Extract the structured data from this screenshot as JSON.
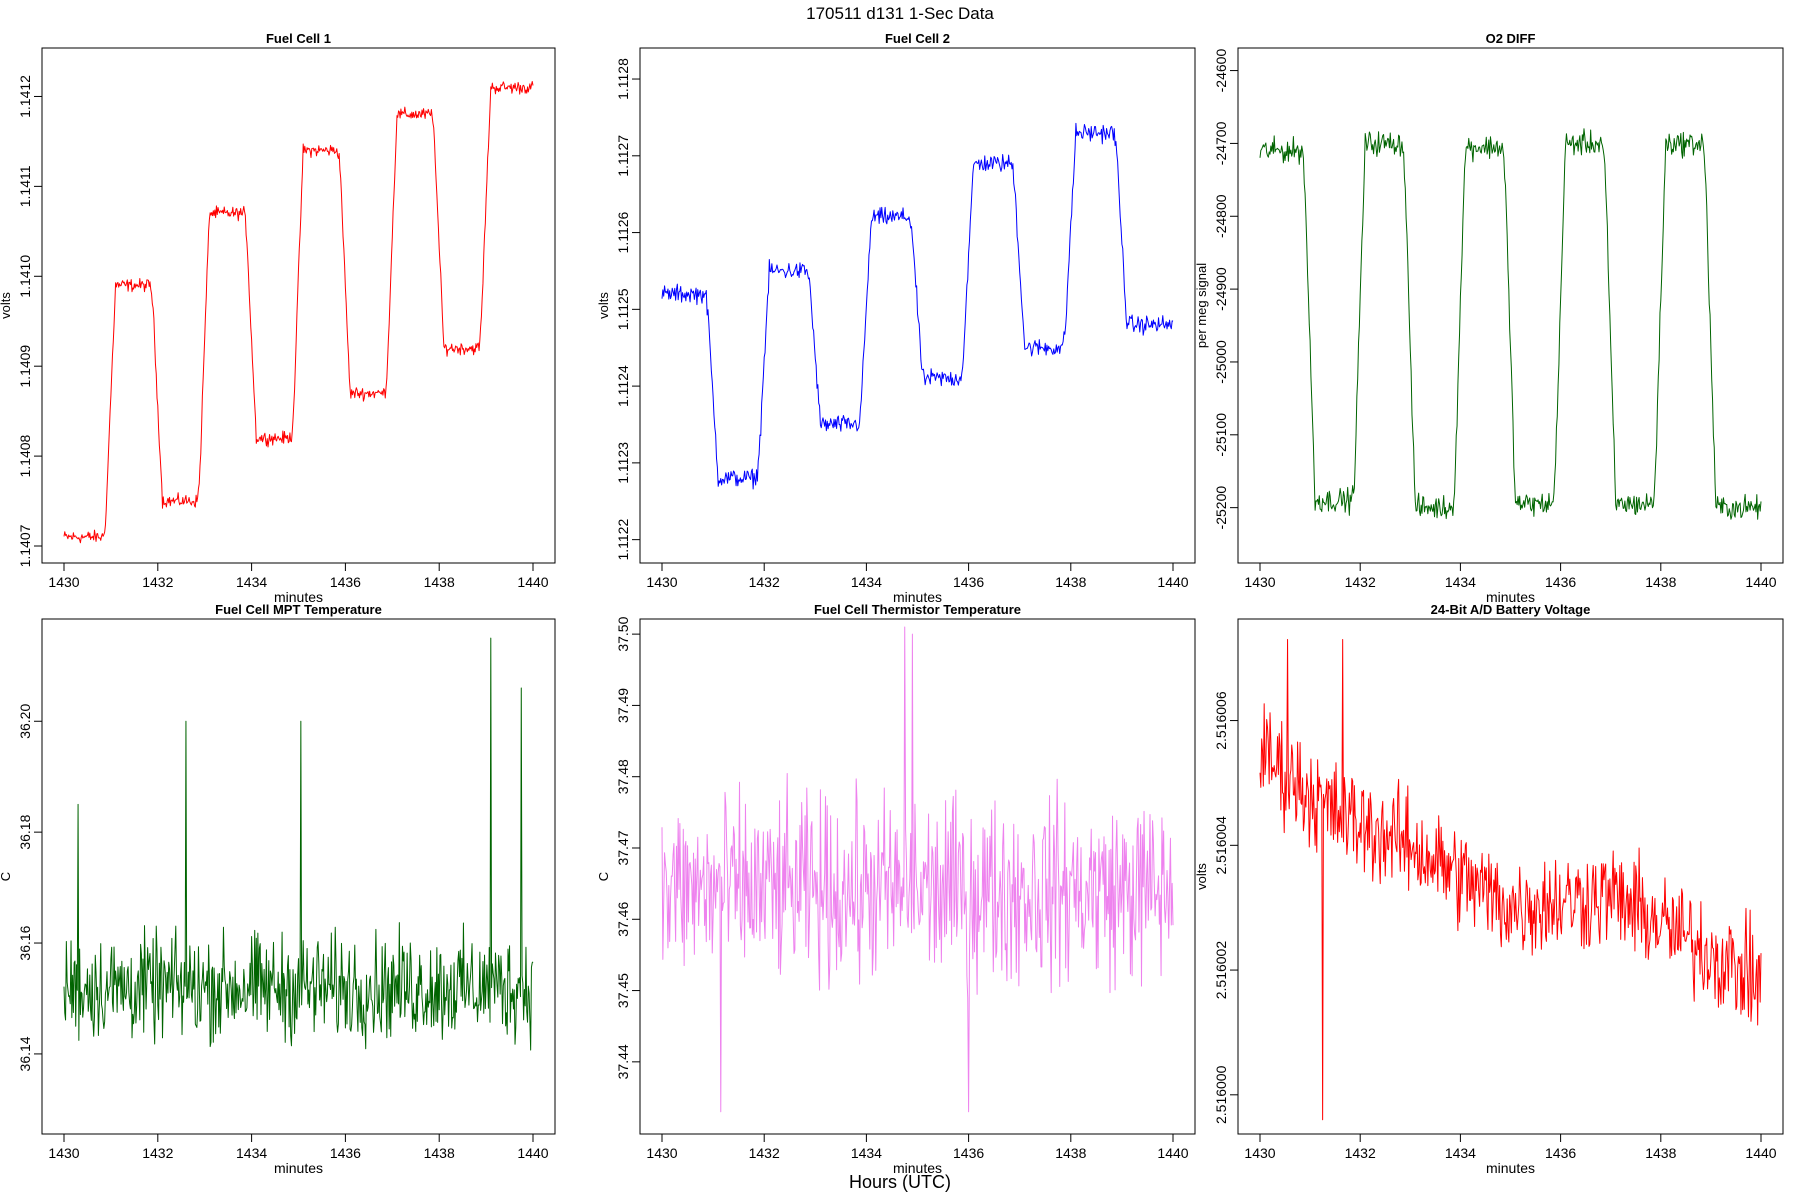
{
  "figure": {
    "title": "170511   d131   1-Sec Data",
    "xlabel": "Hours (UTC)"
  },
  "chart_data": [
    {
      "type": "line",
      "title": "Fuel Cell 1",
      "xlabel": "minutes",
      "ylabel": "volts",
      "color": "#ff0000",
      "xlim": [
        1430,
        1440
      ],
      "xticks": [
        1430,
        1432,
        1434,
        1436,
        1438,
        1440
      ],
      "ylim": [
        1.14069,
        1.141245
      ],
      "yticks": [
        "1.1407",
        "1.1408",
        "1.1409",
        "1.1410",
        "1.1411",
        "1.1412"
      ],
      "pattern": "square",
      "breakpoints": [
        1430,
        1430.95,
        1431.95,
        1432.95,
        1433.95,
        1434.95,
        1435.95,
        1436.95,
        1437.95,
        1438.95,
        1440
      ],
      "levels": [
        1.14071,
        1.14099,
        1.14075,
        1.14107,
        1.14082,
        1.14114,
        1.14087,
        1.14118,
        1.14092,
        1.14121
      ],
      "noise": 6e-06
    },
    {
      "type": "line",
      "title": "Fuel Cell 2",
      "xlabel": "minutes",
      "ylabel": "volts",
      "color": "#0000ff",
      "xlim": [
        1430,
        1440
      ],
      "xticks": [
        1430,
        1432,
        1434,
        1436,
        1438,
        1440
      ],
      "ylim": [
        1.11218,
        1.11283
      ],
      "yticks": [
        "1.1122",
        "1.1123",
        "1.1124",
        "1.1125",
        "1.1126",
        "1.1127",
        "1.1128"
      ],
      "pattern": "square",
      "breakpoints": [
        1430,
        1430.95,
        1431.95,
        1432.95,
        1433.95,
        1434.95,
        1435.95,
        1436.95,
        1437.95,
        1438.95,
        1440
      ],
      "levels": [
        1.11252,
        1.11228,
        1.11255,
        1.11235,
        1.11262,
        1.11241,
        1.11269,
        1.11245,
        1.11273,
        1.11248
      ],
      "noise": 1e-05
    },
    {
      "type": "line",
      "title": "O2 DIFF",
      "xlabel": "minutes",
      "ylabel": "per meg signal",
      "color": "#006400",
      "xlim": [
        1430,
        1440
      ],
      "xticks": [
        1430,
        1432,
        1434,
        1436,
        1438,
        1440
      ],
      "ylim": [
        -25265,
        -24580
      ],
      "yticks": [
        "-24600",
        "-24700",
        "-24800",
        "-24900",
        "-25000",
        "-25100",
        "-25200"
      ],
      "pattern": "square",
      "breakpoints": [
        1430,
        1430.95,
        1431.95,
        1432.95,
        1433.95,
        1434.95,
        1435.95,
        1436.95,
        1437.95,
        1438.95,
        1440
      ],
      "levels": [
        -24710,
        -25190,
        -24700,
        -25200,
        -24705,
        -25195,
        -24700,
        -25195,
        -24700,
        -25200
      ],
      "noise": 14
    },
    {
      "type": "line",
      "title": "Fuel Cell MPT Temperature",
      "xlabel": "minutes",
      "ylabel": "C",
      "color": "#006400",
      "xlim": [
        1430,
        1440
      ],
      "xticks": [
        1430,
        1432,
        1434,
        1436,
        1438,
        1440
      ],
      "ylim": [
        36.127,
        36.217
      ],
      "yticks": [
        "36.14",
        "36.16",
        "36.18",
        "36.20"
      ],
      "pattern": "noise",
      "base": 36.152,
      "noise": 0.008,
      "spikes": [
        [
          1430.3,
          36.185
        ],
        [
          1432.6,
          36.2
        ],
        [
          1435.05,
          36.2
        ],
        [
          1439.1,
          36.215
        ],
        [
          1439.75,
          36.206
        ]
      ]
    },
    {
      "type": "line",
      "title": "Fuel Cell Thermistor Temperature",
      "xlabel": "minutes",
      "ylabel": "C",
      "color": "#ee82ee",
      "xlim": [
        1430,
        1440
      ],
      "xticks": [
        1430,
        1432,
        1434,
        1436,
        1438,
        1440
      ],
      "ylim": [
        37.431,
        37.501
      ],
      "yticks": [
        "37.44",
        "37.45",
        "37.46",
        "37.47",
        "37.48",
        "37.49",
        "37.50"
      ],
      "pattern": "noise",
      "base": 37.464,
      "noise": 0.011,
      "spikes": [
        [
          1434.75,
          37.501
        ],
        [
          1434.9,
          37.5
        ],
        [
          1431.15,
          37.433
        ],
        [
          1436.0,
          37.433
        ]
      ]
    },
    {
      "type": "line",
      "title": "24-Bit A/D Battery Voltage",
      "xlabel": "minutes",
      "ylabel": "volts",
      "color": "#ff0000",
      "xlim": [
        1430,
        1440
      ],
      "xticks": [
        1430,
        1432,
        1434,
        1436,
        1438,
        1440
      ],
      "ylim": [
        2.5159995,
        2.5160075
      ],
      "yticks": [
        "2.516000",
        "2.516002",
        "2.516004",
        "2.516006"
      ],
      "pattern": "trend",
      "trend": [
        [
          1430,
          2.5160055
        ],
        [
          1431.5,
          2.5160045
        ],
        [
          1433,
          2.516004
        ],
        [
          1435,
          2.516003
        ],
        [
          1437,
          2.5160032
        ],
        [
          1438.5,
          2.5160025
        ],
        [
          1440,
          2.5160018
        ]
      ],
      "noise": 7e-07,
      "spikes": [
        [
          1430.55,
          2.5160073
        ],
        [
          1431.65,
          2.5160073
        ],
        [
          1431.25,
          2.5159996
        ]
      ]
    }
  ]
}
